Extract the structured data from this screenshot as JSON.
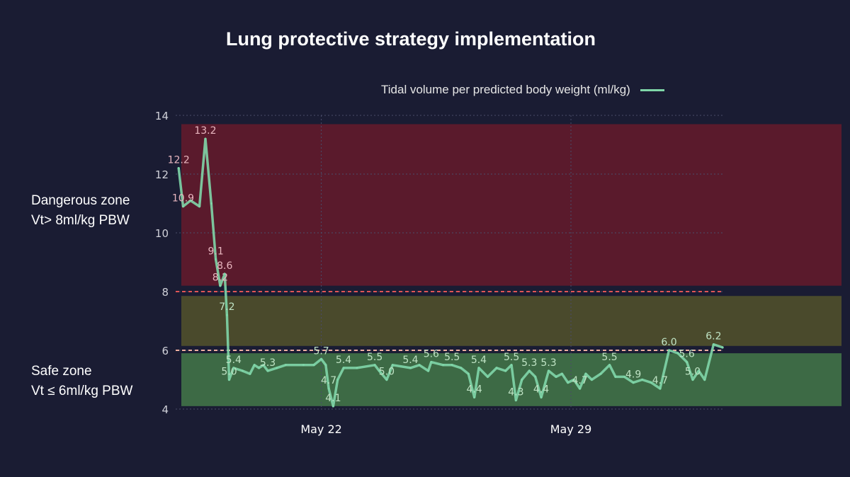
{
  "chart_data": {
    "type": "line",
    "title": "Lung protective strategy implementation",
    "series": [
      {
        "name": "Tidal volume per predicted body weight (ml/kg)",
        "color": "#7fd6a8",
        "points": [
          {
            "x": "2024-05-18T00:00",
            "y": 12.2,
            "label": "12.2"
          },
          {
            "x": "2024-05-18T03:00",
            "y": 10.9,
            "label": "10.9"
          },
          {
            "x": "2024-05-18T08:00",
            "y": 11.1
          },
          {
            "x": "2024-05-18T14:00",
            "y": 10.9
          },
          {
            "x": "2024-05-18T18:00",
            "y": 13.2,
            "label": "13.2"
          },
          {
            "x": "2024-05-18T22:00",
            "y": 11.0
          },
          {
            "x": "2024-05-19T01:00",
            "y": 9.1,
            "label": "9.1"
          },
          {
            "x": "2024-05-19T04:00",
            "y": 8.2,
            "label": "8.2"
          },
          {
            "x": "2024-05-19T07:00",
            "y": 8.6,
            "label": "8.6"
          },
          {
            "x": "2024-05-19T08:30",
            "y": 7.2,
            "label": "7.2"
          },
          {
            "x": "2024-05-19T10:00",
            "y": 5.0,
            "label": "5.0"
          },
          {
            "x": "2024-05-19T13:00",
            "y": 5.4,
            "label": "5.4"
          },
          {
            "x": "2024-05-19T19:00",
            "y": 5.3
          },
          {
            "x": "2024-05-20T00:00",
            "y": 5.2
          },
          {
            "x": "2024-05-20T03:00",
            "y": 5.5
          },
          {
            "x": "2024-05-20T06:00",
            "y": 5.4
          },
          {
            "x": "2024-05-20T09:00",
            "y": 5.5
          },
          {
            "x": "2024-05-20T12:00",
            "y": 5.3,
            "label": "5.3"
          },
          {
            "x": "2024-05-20T18:00",
            "y": 5.4
          },
          {
            "x": "2024-05-21T00:00",
            "y": 5.5
          },
          {
            "x": "2024-05-21T12:00",
            "y": 5.5
          },
          {
            "x": "2024-05-21T19:00",
            "y": 5.5
          },
          {
            "x": "2024-05-22T00:00",
            "y": 5.7,
            "label": "5.7"
          },
          {
            "x": "2024-05-22T03:00",
            "y": 5.5
          },
          {
            "x": "2024-05-22T05:00",
            "y": 4.7,
            "label": "4.7"
          },
          {
            "x": "2024-05-22T08:00",
            "y": 4.1,
            "label": "4.1"
          },
          {
            "x": "2024-05-22T11:00",
            "y": 5.0
          },
          {
            "x": "2024-05-22T15:00",
            "y": 5.4,
            "label": "5.4"
          },
          {
            "x": "2024-05-23T00:00",
            "y": 5.4
          },
          {
            "x": "2024-05-23T12:00",
            "y": 5.5,
            "label": "5.5"
          },
          {
            "x": "2024-05-23T15:00",
            "y": 5.3
          },
          {
            "x": "2024-05-23T20:00",
            "y": 5.0,
            "label": "5.0"
          },
          {
            "x": "2024-05-24T00:00",
            "y": 5.5
          },
          {
            "x": "2024-05-24T12:00",
            "y": 5.4,
            "label": "5.4"
          },
          {
            "x": "2024-05-24T18:00",
            "y": 5.5
          },
          {
            "x": "2024-05-25T00:00",
            "y": 5.3
          },
          {
            "x": "2024-05-25T02:00",
            "y": 5.6,
            "label": "5.6"
          },
          {
            "x": "2024-05-25T10:00",
            "y": 5.5
          },
          {
            "x": "2024-05-25T16:00",
            "y": 5.5,
            "label": "5.5"
          },
          {
            "x": "2024-05-25T22:00",
            "y": 5.4
          },
          {
            "x": "2024-05-26T03:00",
            "y": 5.2
          },
          {
            "x": "2024-05-26T07:00",
            "y": 4.4,
            "label": "4.4"
          },
          {
            "x": "2024-05-26T10:00",
            "y": 5.4,
            "label": "5.4"
          },
          {
            "x": "2024-05-26T16:00",
            "y": 5.1
          },
          {
            "x": "2024-05-26T22:00",
            "y": 5.4
          },
          {
            "x": "2024-05-27T04:00",
            "y": 5.3
          },
          {
            "x": "2024-05-27T08:00",
            "y": 5.5,
            "label": "5.5"
          },
          {
            "x": "2024-05-27T11:00",
            "y": 4.3,
            "label": "4.3"
          },
          {
            "x": "2024-05-27T15:00",
            "y": 5.0
          },
          {
            "x": "2024-05-27T20:00",
            "y": 5.3,
            "label": "5.3"
          },
          {
            "x": "2024-05-28T00:00",
            "y": 5.1
          },
          {
            "x": "2024-05-28T04:00",
            "y": 4.4,
            "label": "4.4"
          },
          {
            "x": "2024-05-28T09:00",
            "y": 5.3,
            "label": "5.3"
          },
          {
            "x": "2024-05-28T14:00",
            "y": 5.1
          },
          {
            "x": "2024-05-28T18:00",
            "y": 5.2
          },
          {
            "x": "2024-05-28T22:00",
            "y": 4.9
          },
          {
            "x": "2024-05-29T02:00",
            "y": 5.0
          },
          {
            "x": "2024-05-29T06:00",
            "y": 4.7,
            "label": "4.7"
          },
          {
            "x": "2024-05-29T10:00",
            "y": 5.2
          },
          {
            "x": "2024-05-29T14:00",
            "y": 5.0
          },
          {
            "x": "2024-05-29T20:00",
            "y": 5.2
          },
          {
            "x": "2024-05-30T02:00",
            "y": 5.5,
            "label": "5.5"
          },
          {
            "x": "2024-05-30T06:00",
            "y": 5.1
          },
          {
            "x": "2024-05-30T12:00",
            "y": 5.1
          },
          {
            "x": "2024-05-30T18:00",
            "y": 4.9,
            "label": "4.9"
          },
          {
            "x": "2024-05-31T00:00",
            "y": 5.0
          },
          {
            "x": "2024-05-31T06:00",
            "y": 4.9
          },
          {
            "x": "2024-05-31T12:00",
            "y": 4.7,
            "label": "4.7"
          },
          {
            "x": "2024-05-31T18:00",
            "y": 6.0,
            "label": "6.0"
          },
          {
            "x": "2024-06-01T00:00",
            "y": 5.9
          },
          {
            "x": "2024-06-01T06:00",
            "y": 5.6,
            "label": "5.6"
          },
          {
            "x": "2024-06-01T10:00",
            "y": 5.0,
            "label": "5.0"
          },
          {
            "x": "2024-06-01T14:00",
            "y": 5.3
          },
          {
            "x": "2024-06-01T18:00",
            "y": 5.0
          },
          {
            "x": "2024-06-02T00:00",
            "y": 6.2,
            "label": "6.2"
          },
          {
            "x": "2024-06-02T06:00",
            "y": 6.1
          }
        ]
      }
    ],
    "xaxis": {
      "type": "date",
      "ticks": [
        {
          "x": "2024-05-22T00:00",
          "label": "May 22"
        },
        {
          "x": "2024-05-29T00:00",
          "label": "May 29"
        }
      ],
      "range": [
        "2024-05-17T22:00",
        "2024-06-02T06:00"
      ],
      "grid": true
    },
    "yaxis": {
      "range": [
        4,
        14
      ],
      "ticks": [
        4,
        6,
        8,
        10,
        12,
        14
      ],
      "grid": true
    },
    "zones": [
      {
        "name": "danger",
        "from": 8.2,
        "to": 13.7,
        "color": "#5a1a2c"
      },
      {
        "name": "caution",
        "from": 6.15,
        "to": 7.85,
        "color": "#4a4a2c"
      },
      {
        "name": "safe",
        "from": 4.1,
        "to": 5.9,
        "color": "#3d6a45"
      }
    ],
    "thresholds": [
      {
        "y": 8,
        "color": "#e05555"
      },
      {
        "y": 6,
        "color": "#f0b0a0"
      }
    ],
    "legend_position": "top-right"
  },
  "zone_labels": {
    "danger": {
      "line1": "Dangerous zone",
      "line2": "Vt> 8ml/kg PBW"
    },
    "safe": {
      "line1": "Safe zone",
      "line2": "Vt ≤ 6ml/kg PBW"
    }
  }
}
